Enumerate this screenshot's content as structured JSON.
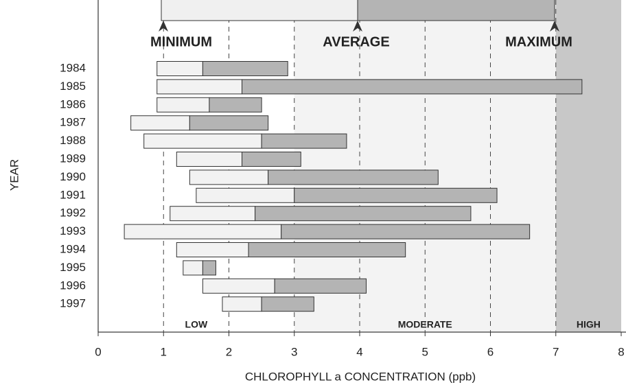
{
  "chart_data": {
    "type": "range_bar",
    "xlabel": "CHLOROPHYLL a CONCENTRATION (ppb)",
    "ylabel": "YEAR",
    "categories": [
      "1984",
      "1985",
      "1986",
      "1987",
      "1988",
      "1989",
      "1990",
      "1991",
      "1992",
      "1993",
      "1994",
      "1995",
      "1996",
      "1997"
    ],
    "series": [
      {
        "name": "MINIMUM",
        "values": [
          0.9,
          0.9,
          0.9,
          0.5,
          0.7,
          1.2,
          1.4,
          1.5,
          1.1,
          0.4,
          1.2,
          1.3,
          1.6,
          1.9
        ]
      },
      {
        "name": "AVERAGE",
        "values": [
          1.6,
          2.2,
          1.7,
          1.4,
          2.5,
          2.2,
          2.6,
          3.0,
          2.4,
          2.8,
          2.3,
          1.6,
          2.7,
          2.5
        ]
      },
      {
        "name": "MAXIMUM",
        "values": [
          2.9,
          7.4,
          2.5,
          2.6,
          3.8,
          3.1,
          5.2,
          6.1,
          5.7,
          6.6,
          4.7,
          1.8,
          4.1,
          3.3
        ]
      }
    ],
    "colors": {
      "low_part": "#f2f2f2",
      "high_part": "#b4b4b4"
    },
    "zones": [
      {
        "label": "LOW",
        "from": 0,
        "to": 3,
        "color": "#ffffff"
      },
      {
        "label": "MODERATE",
        "from": 3,
        "to": 7,
        "color": "#f3f3f3"
      },
      {
        "label": "HIGH",
        "from": 7,
        "to": 8,
        "color": "#c8c8c8"
      }
    ],
    "xlim": [
      0,
      8
    ],
    "xticks": [
      0,
      1,
      2,
      3,
      4,
      5,
      6,
      7,
      8
    ],
    "grid": true
  }
}
